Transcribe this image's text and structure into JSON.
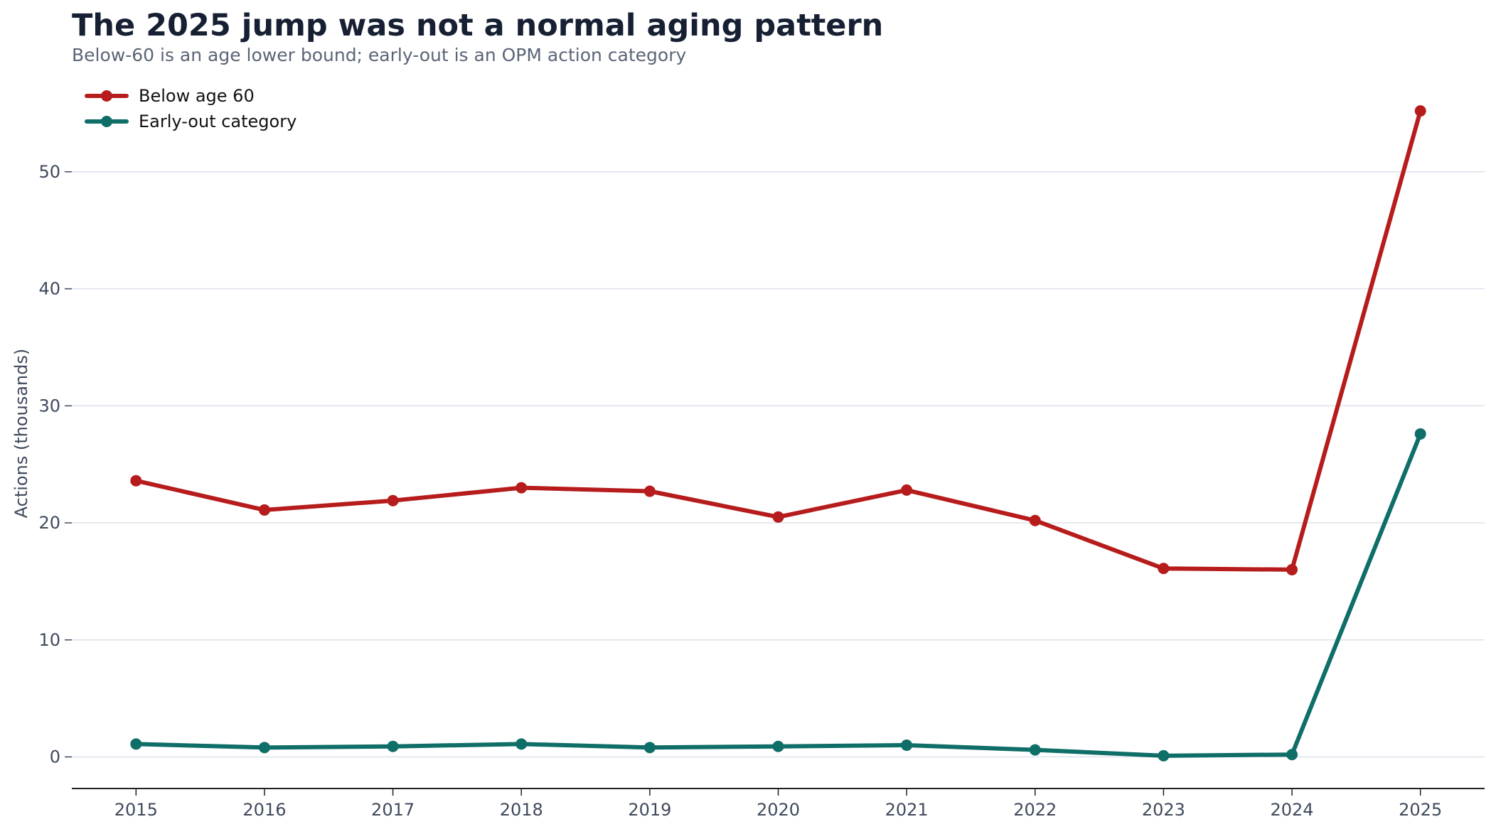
{
  "chart_data": {
    "type": "line",
    "title": "The 2025 jump was not a normal aging pattern",
    "subtitle": "Below-60 is an age lower bound; early-out is an OPM action category",
    "xlabel": "",
    "ylabel": "Actions (thousands)",
    "x": [
      2015,
      2016,
      2017,
      2018,
      2019,
      2020,
      2021,
      2022,
      2023,
      2024,
      2025
    ],
    "ylim": [
      -2.7,
      58
    ],
    "yticks": [
      0,
      10,
      20,
      30,
      40,
      50
    ],
    "grid": "horizontal",
    "legend_position": "top-left",
    "series": [
      {
        "name": "Below age 60",
        "color": "#b71c1c",
        "values": [
          23.6,
          21.1,
          21.9,
          23.0,
          22.7,
          20.5,
          22.8,
          20.2,
          16.1,
          16.0,
          55.2
        ]
      },
      {
        "name": "Early-out category",
        "color": "#0f6e67",
        "values": [
          1.1,
          0.8,
          0.9,
          1.1,
          0.8,
          0.9,
          1.0,
          0.6,
          0.1,
          0.2,
          27.6
        ]
      }
    ]
  }
}
